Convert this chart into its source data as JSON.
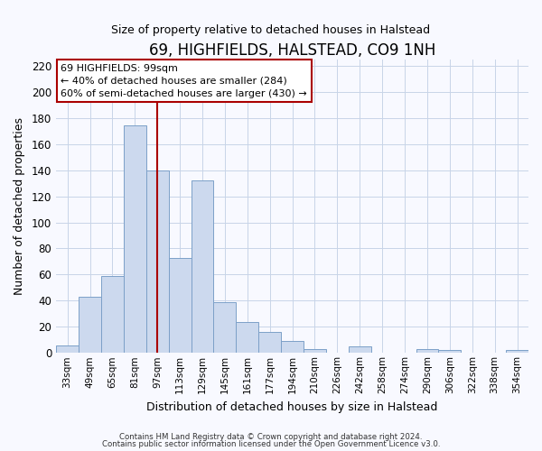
{
  "title": "69, HIGHFIELDS, HALSTEAD, CO9 1NH",
  "subtitle": "Size of property relative to detached houses in Halstead",
  "xlabel": "Distribution of detached houses by size in Halstead",
  "ylabel": "Number of detached properties",
  "bar_color": "#ccd9ee",
  "bar_edge_color": "#7ca0c8",
  "categories": [
    "33sqm",
    "49sqm",
    "65sqm",
    "81sqm",
    "97sqm",
    "113sqm",
    "129sqm",
    "145sqm",
    "161sqm",
    "177sqm",
    "194sqm",
    "210sqm",
    "226sqm",
    "242sqm",
    "258sqm",
    "274sqm",
    "290sqm",
    "306sqm",
    "322sqm",
    "338sqm",
    "354sqm"
  ],
  "values": [
    6,
    43,
    59,
    174,
    140,
    73,
    132,
    39,
    24,
    16,
    9,
    3,
    0,
    5,
    0,
    0,
    3,
    2,
    0,
    0,
    2
  ],
  "ylim": [
    0,
    225
  ],
  "yticks": [
    0,
    20,
    40,
    60,
    80,
    100,
    120,
    140,
    160,
    180,
    200,
    220
  ],
  "vline_x_index": 4,
  "vline_color": "#aa0000",
  "ann_line1": "69 HIGHFIELDS: 99sqm",
  "ann_line2": "← 40% of detached houses are smaller (284)",
  "ann_line3": "60% of semi-detached houses are larger (430) →",
  "footer_line1": "Contains HM Land Registry data © Crown copyright and database right 2024.",
  "footer_line2": "Contains public sector information licensed under the Open Government Licence v3.0.",
  "background_color": "#f8f9ff",
  "grid_color": "#c8d4e8"
}
